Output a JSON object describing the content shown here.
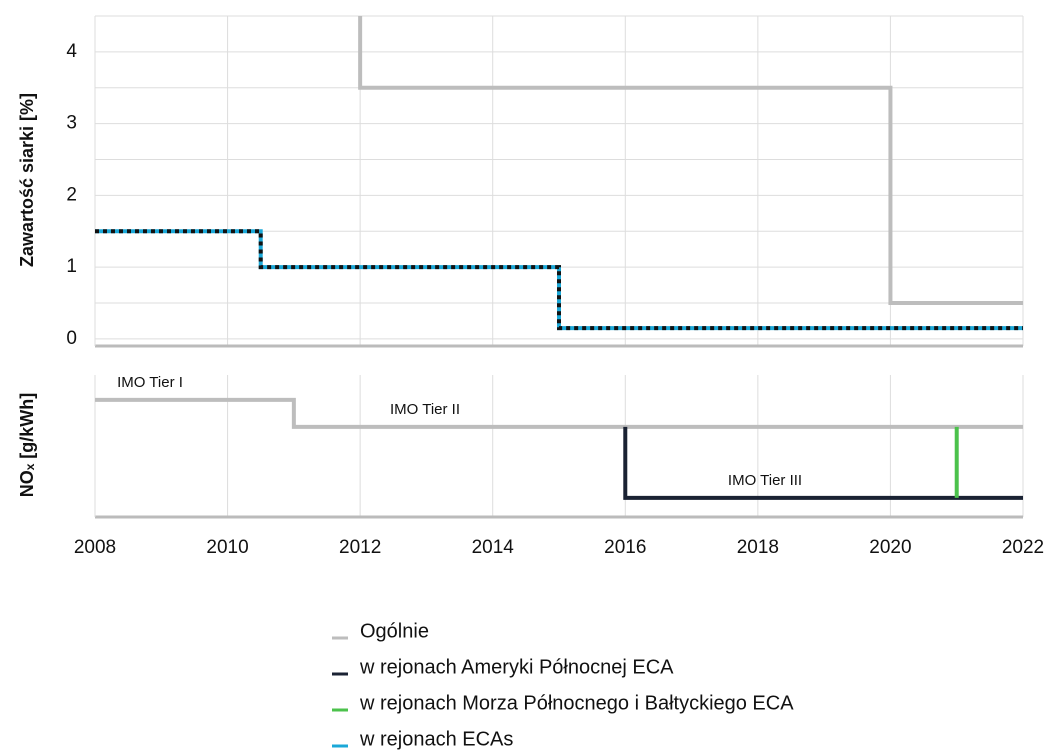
{
  "chart_data": [
    {
      "type": "line",
      "ylabel": "Zawartość siarki [%]",
      "xlim": [
        2008,
        2022
      ],
      "xticks": [
        2008,
        2010,
        2012,
        2014,
        2016,
        2018,
        2020,
        2022
      ],
      "ylim": [
        -0.1,
        4.5
      ],
      "yticks": [
        0,
        1,
        2,
        3,
        4
      ],
      "minor_yticks": [
        0.5,
        1.5,
        2.5,
        3.5,
        4.5
      ],
      "grid": true,
      "series": [
        {
          "name": "Ogólnie",
          "color": "#bdbdbd",
          "x": [
            2012,
            2012,
            2020,
            2020,
            2022
          ],
          "values": [
            4.5,
            3.5,
            3.5,
            0.5,
            0.5
          ]
        },
        {
          "name": "w rejonach ECAs",
          "color": "#1ba8d8",
          "x": [
            2008,
            2010.5,
            2010.5,
            2015,
            2015,
            2022
          ],
          "values": [
            1.5,
            1.5,
            1,
            1,
            0.15,
            0.15
          ]
        }
      ]
    },
    {
      "type": "line",
      "ylabel": "NOₓ [g/kWh]",
      "xlim": [
        2008,
        2022
      ],
      "xticks": [
        2008,
        2010,
        2012,
        2014,
        2016,
        2018,
        2020,
        2022
      ],
      "ylim": [
        0,
        20
      ],
      "grid": true,
      "series": [
        {
          "name": "Ogólnie",
          "color": "#bdbdbd",
          "x": [
            2008,
            2011,
            2011,
            2022
          ],
          "values": [
            16.5,
            16.5,
            12.7,
            12.7
          ]
        },
        {
          "name": "w rejonach Ameryki Północnej ECA",
          "color": "#1a2233",
          "x": [
            2016,
            2016,
            2022
          ],
          "values": [
            12.7,
            2.7,
            2.7
          ]
        },
        {
          "name": "w rejonach Morza Północnego i Bałtyckiego ECA",
          "color": "#4cc24c",
          "x": [
            2021,
            2021
          ],
          "values": [
            12.7,
            2.7
          ]
        }
      ],
      "annotations": [
        "IMO Tier I",
        "IMO Tier II",
        "IMO Tier III"
      ]
    }
  ],
  "legend": [
    {
      "name": "Ogólnie",
      "color": "#bdbdbd"
    },
    {
      "name": "w rejonach Ameryki Północnej ECA",
      "color": "#1a2233"
    },
    {
      "name": "w rejonach Morza Północnego i Bałtyckiego ECA",
      "color": "#4cc24c"
    },
    {
      "name": "w rejonach ECAs",
      "color": "#1ba8d8"
    }
  ]
}
